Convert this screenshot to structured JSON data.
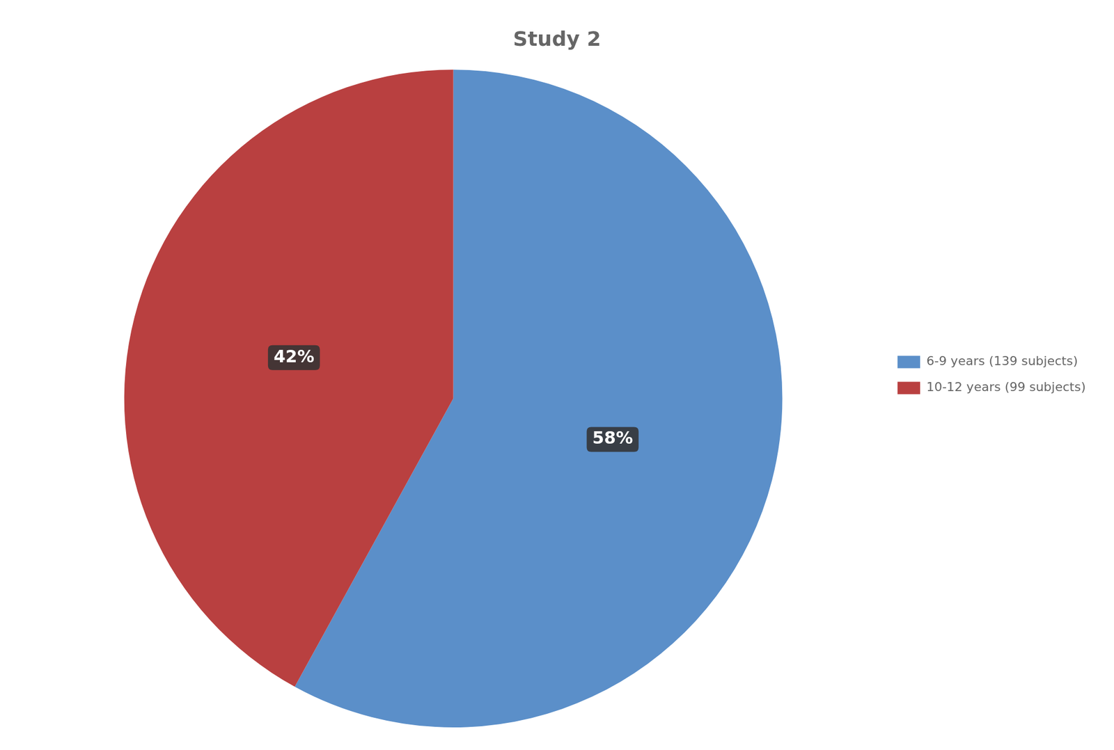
{
  "chart_data": {
    "type": "pie",
    "title": "Study 2",
    "categories": [
      "6-9 years (139 subjects)",
      "10-12 years (99 subjects)"
    ],
    "values": [
      58,
      42
    ],
    "value_labels": [
      "58%",
      "42%"
    ],
    "colors": [
      "#5b8fc9",
      "#b94040"
    ],
    "data_labels": true,
    "legend": "right"
  }
}
